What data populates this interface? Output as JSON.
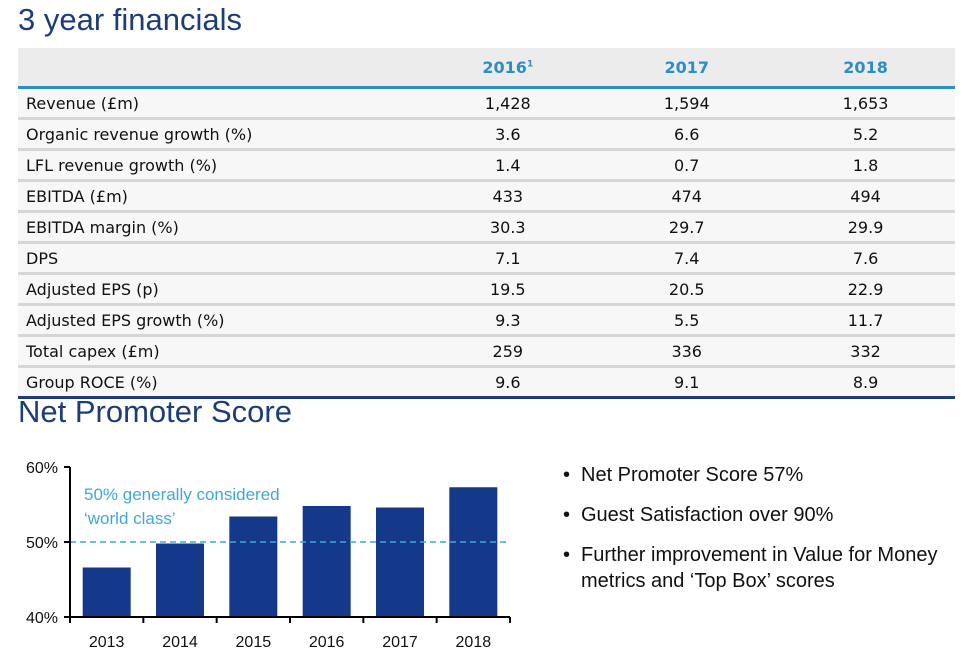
{
  "title": "3 year financials",
  "table": {
    "headers": [
      "",
      "2016",
      "2017",
      "2018"
    ],
    "header_footnote": "1",
    "rows": [
      [
        "Revenue (£m)",
        "1,428",
        "1,594",
        "1,653"
      ],
      [
        "Organic revenue growth (%)",
        "3.6",
        "6.6",
        "5.2"
      ],
      [
        "LFL revenue growth (%)",
        "1.4",
        "0.7",
        "1.8"
      ],
      [
        "EBITDA (£m)",
        "433",
        "474",
        "494"
      ],
      [
        "EBITDA margin (%)",
        "30.3",
        "29.7",
        "29.9"
      ],
      [
        "DPS",
        "7.1",
        "7.4",
        "7.6"
      ],
      [
        "Adjusted EPS (p)",
        "19.5",
        "20.5",
        "22.9"
      ],
      [
        "Adjusted EPS growth (%)",
        "9.3",
        "5.5",
        "11.7"
      ],
      [
        "Total capex (£m)",
        "259",
        "336",
        "332"
      ],
      [
        "Group ROCE (%)",
        "9.6",
        "9.1",
        "8.9"
      ]
    ]
  },
  "nps_title": "Net Promoter Score",
  "chart_data": {
    "type": "bar",
    "categories": [
      "2013",
      "2014",
      "2015",
      "2016",
      "2017",
      "2018"
    ],
    "values": [
      46.6,
      49.8,
      53.4,
      54.8,
      54.6,
      57.3
    ],
    "ylim": [
      40,
      60
    ],
    "yticks": [
      "40%",
      "50%",
      "60%"
    ],
    "reference_line": {
      "value": 50,
      "label_lines": [
        "50% generally considered",
        "‘world class’"
      ],
      "color": "#3fa9d6"
    },
    "bar_color": "#14398a",
    "grid": false
  },
  "bullets": [
    "Net Promoter Score 57%",
    "Guest Satisfaction over 90%",
    "Further improvement in Value for Money metrics and ‘Top Box’ scores"
  ]
}
